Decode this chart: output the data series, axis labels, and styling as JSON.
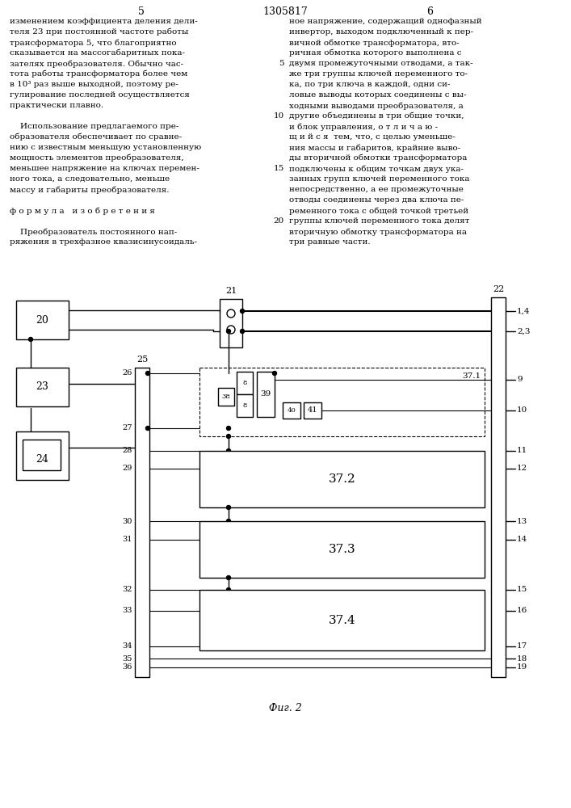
{
  "page_number_left": "5",
  "page_number_center": "1305817",
  "page_number_right": "6",
  "bg_color": "#ffffff",
  "left_text": [
    "изменением коэффициента деления дели-",
    "теля 23 при постоянной частоте работы",
    "трансформатора 5, что благоприятно",
    "сказывается на массогабаритных пока-",
    "зателях преобразователя. Обычно час-",
    "тота работы трансформатора более чем",
    "в 10³ раз выше выходной, поэтому ре-",
    "гулирование последней осуществляется",
    "практически плавно.",
    "",
    "    Использование предлагаемого пре-",
    "образователя обеспечивает по сравне-",
    "нию с известным меньшую установленную",
    "мощность элементов преобразователя,",
    "меньшее напряжение на ключах перемен-",
    "ного тока, а следовательно, меньше",
    "массу и габариты преобразователя.",
    "",
    "ф о р м у л а   и з о б р е т е н и я",
    "",
    "    Преобразователь постоянного нап-",
    "ряжения в трехфазное квазисинусоидаль-"
  ],
  "right_text": [
    "ное напряжение, содержащий однофазный",
    "инвертор, выходом подключенный к пер-",
    "вичной обмотке трансформатора, вто-",
    "ричная обмотка которого выполнена с",
    "двумя промежуточными отводами, а так-",
    "же три группы ключей переменного то-",
    "ка, по три ключа в каждой, одни си-",
    "ловые выводы которых соединены с вы-",
    "ходными выводами преобразователя, а",
    "другие объединены в три общие точки,",
    "и блок управления, о т л и ч а ю -",
    "щ и й с я  тем, что, с целью уменьше-",
    "ния массы и габаритов, крайние выво-",
    "ды вторичной обмотки трансформатора",
    "подключены к общим точкам двух ука-",
    "занных групп ключей переменного тока",
    "непосредственно, а ее промежуточные",
    "отводы соединены через два ключа пе-",
    "ременного тока с общей точкой третьей",
    "группы ключей переменного тока делят",
    "вторичную обмотку трансформатора на",
    "три равные части."
  ],
  "right_line_nums": {
    "4": "5",
    "9": "10",
    "14": "15",
    "19": "20"
  },
  "fig_caption": "Фиг. 2"
}
